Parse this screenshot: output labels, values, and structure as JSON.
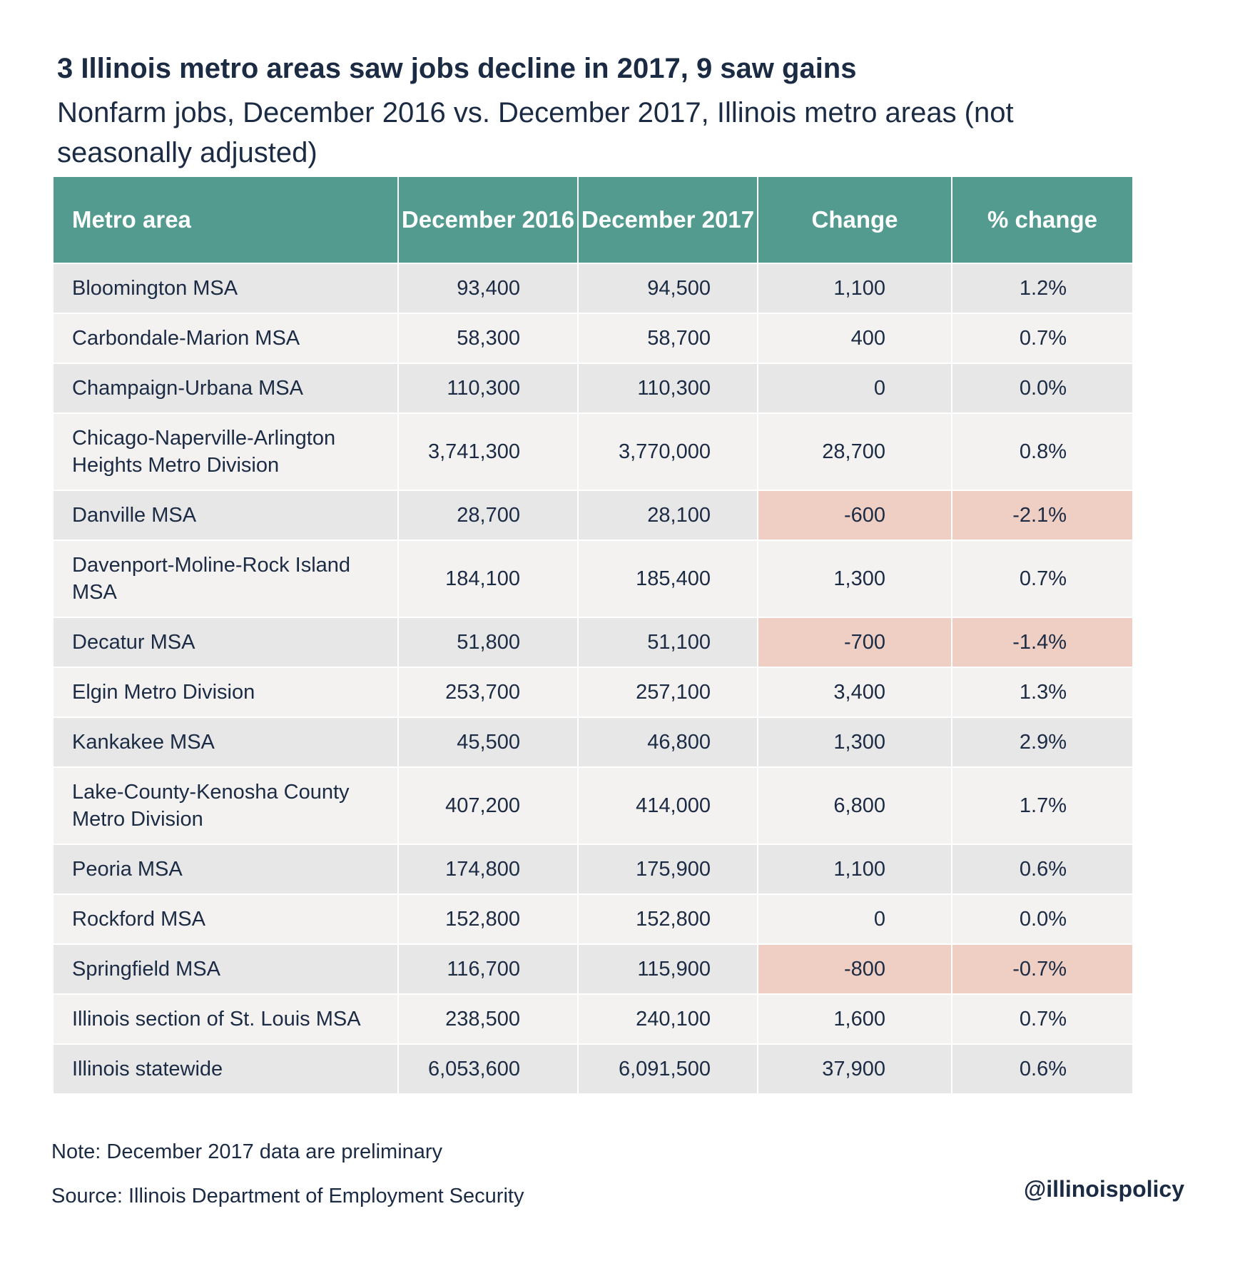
{
  "header": {
    "title": "3 Illinois metro areas saw jobs decline in 2017, 9 saw gains",
    "subtitle": "Nonfarm jobs, December 2016 vs. December 2017, Illinois metro areas (not seasonally adjusted)"
  },
  "colors": {
    "header_bg": "#539a8f",
    "row_odd": "#e8e7e8",
    "row_even": "#f4f2f0",
    "negative_highlight": "#efcfc4",
    "text": "#1c2b44"
  },
  "chart_data": {
    "type": "table",
    "columns": [
      "Metro area",
      "December 2016",
      "December 2017",
      "Change",
      "% change"
    ],
    "rows": [
      {
        "metro": "Bloomington MSA",
        "dec2016": "93,400",
        "dec2017": "94,500",
        "change": "1,100",
        "pct": "1.2%",
        "negative": false
      },
      {
        "metro": "Carbondale-Marion MSA",
        "dec2016": "58,300",
        "dec2017": "58,700",
        "change": "400",
        "pct": "0.7%",
        "negative": false
      },
      {
        "metro": "Champaign-Urbana MSA",
        "dec2016": "110,300",
        "dec2017": "110,300",
        "change": "0",
        "pct": "0.0%",
        "negative": false
      },
      {
        "metro": "Chicago-Naperville-Arlington Heights Metro Division",
        "dec2016": "3,741,300",
        "dec2017": "3,770,000",
        "change": "28,700",
        "pct": "0.8%",
        "negative": false
      },
      {
        "metro": "Danville MSA",
        "dec2016": "28,700",
        "dec2017": "28,100",
        "change": "-600",
        "pct": "-2.1%",
        "negative": true
      },
      {
        "metro": "Davenport-Moline-Rock Island MSA",
        "dec2016": "184,100",
        "dec2017": "185,400",
        "change": "1,300",
        "pct": "0.7%",
        "negative": false
      },
      {
        "metro": "Decatur MSA",
        "dec2016": "51,800",
        "dec2017": "51,100",
        "change": "-700",
        "pct": "-1.4%",
        "negative": true
      },
      {
        "metro": "Elgin Metro Division",
        "dec2016": "253,700",
        "dec2017": "257,100",
        "change": "3,400",
        "pct": "1.3%",
        "negative": false
      },
      {
        "metro": "Kankakee MSA",
        "dec2016": "45,500",
        "dec2017": "46,800",
        "change": "1,300",
        "pct": "2.9%",
        "negative": false
      },
      {
        "metro": "Lake-County-Kenosha County Metro Division",
        "dec2016": "407,200",
        "dec2017": "414,000",
        "change": "6,800",
        "pct": "1.7%",
        "negative": false
      },
      {
        "metro": "Peoria MSA",
        "dec2016": "174,800",
        "dec2017": "175,900",
        "change": "1,100",
        "pct": "0.6%",
        "negative": false
      },
      {
        "metro": "Rockford MSA",
        "dec2016": "152,800",
        "dec2017": "152,800",
        "change": "0",
        "pct": "0.0%",
        "negative": false
      },
      {
        "metro": "Springfield MSA",
        "dec2016": "116,700",
        "dec2017": "115,900",
        "change": "-800",
        "pct": "-0.7%",
        "negative": true
      },
      {
        "metro": "Illinois section of St. Louis MSA",
        "dec2016": "238,500",
        "dec2017": "240,100",
        "change": "1,600",
        "pct": "0.7%",
        "negative": false
      },
      {
        "metro": "Illinois statewide",
        "dec2016": "6,053,600",
        "dec2017": "6,091,500",
        "change": "37,900",
        "pct": "0.6%",
        "negative": false
      }
    ]
  },
  "footer": {
    "note": "Note: December 2017 data are preliminary",
    "source": "Source:  Illinois Department of Employment Security",
    "handle": "@illinoispolicy"
  }
}
